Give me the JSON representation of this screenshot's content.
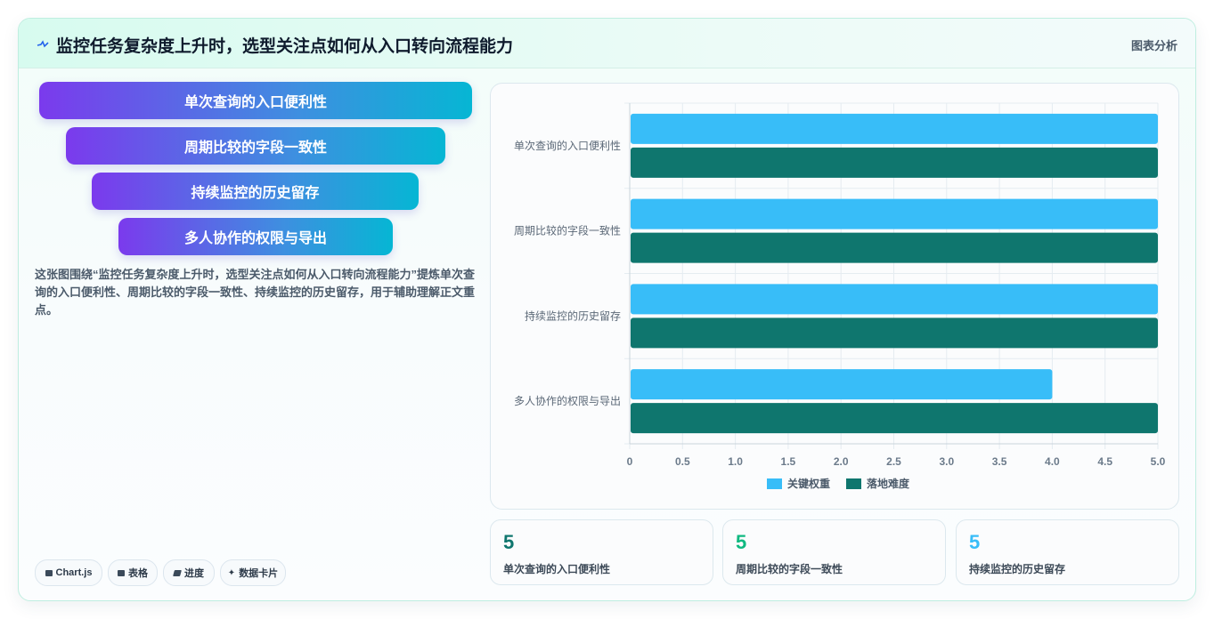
{
  "header": {
    "title": "监控任务复杂度上升时，选型关注点如何从入口转向流程能力",
    "right_label": "图表分析",
    "icon": "pulse-icon"
  },
  "funnel": {
    "steps": [
      {
        "label": "单次查询的入口便利性"
      },
      {
        "label": "周期比较的字段一致性"
      },
      {
        "label": "持续监控的历史留存"
      },
      {
        "label": "多人协作的权限与导出"
      }
    ]
  },
  "description": "这张图围绕“监控任务复杂度上升时，选型关注点如何从入口转向流程能力”提炼单次查询的入口便利性、周期比较的字段一致性、持续监控的历史留存，用于辅助理解正文重点。",
  "chart_data": {
    "type": "bar",
    "orientation": "horizontal",
    "categories": [
      "单次查询的入口便利性",
      "周期比较的字段一致性",
      "持续监控的历史留存",
      "多人协作的权限与导出"
    ],
    "series": [
      {
        "name": "关键权重",
        "color": "#38bdf8",
        "values": [
          5,
          5,
          5,
          4
        ]
      },
      {
        "name": "落地难度",
        "color": "#0f766e",
        "values": [
          5,
          5,
          5,
          5
        ]
      }
    ],
    "xlim": [
      0,
      5
    ],
    "xticks": [
      "0",
      "0.5",
      "1.0",
      "1.5",
      "2.0",
      "2.5",
      "3.0",
      "3.5",
      "4.0",
      "4.5",
      "5.0"
    ],
    "grid": true,
    "legend": "bottom"
  },
  "stats": [
    {
      "value": "5",
      "label": "单次查询的入口便利性",
      "color": "#0f766e"
    },
    {
      "value": "5",
      "label": "周期比较的字段一致性",
      "color": "#10b981"
    },
    {
      "value": "5",
      "label": "持续监控的历史留存",
      "color": "#38bdf8"
    }
  ],
  "chips": [
    {
      "label": "Chart.js",
      "icon": "chart-icon"
    },
    {
      "label": "表格",
      "icon": "table-icon"
    },
    {
      "label": "进度",
      "icon": "progress-icon"
    },
    {
      "label": "数据卡片",
      "icon": "sparkle-icon"
    }
  ]
}
